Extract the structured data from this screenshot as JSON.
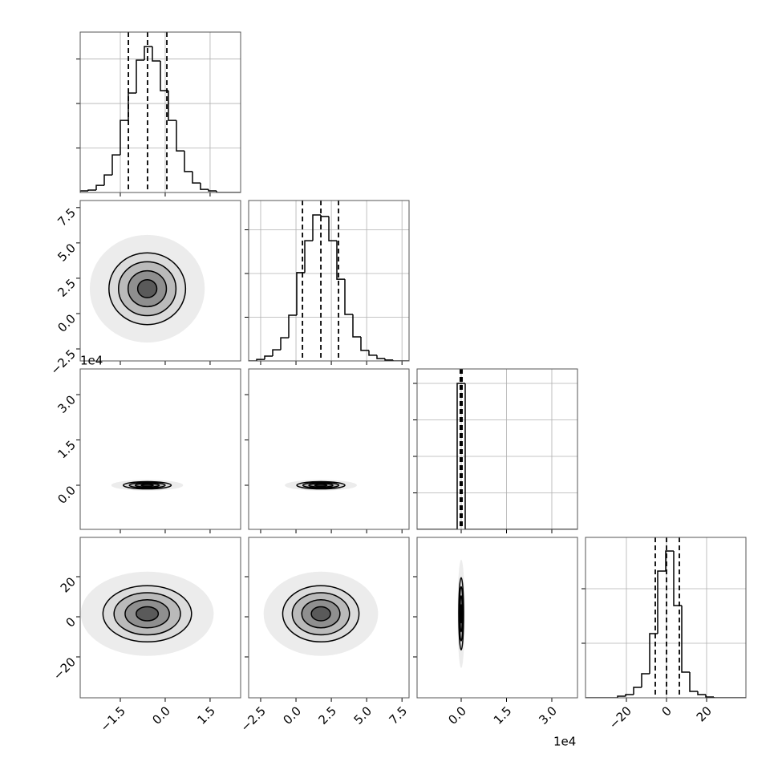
{
  "chart_data": {
    "type": "corner",
    "grid": true,
    "line_color": "#000000",
    "frame_color": "#555555",
    "grid_color": "#b0b0b0",
    "levels": [
      0.5,
      1,
      1.5,
      2
    ],
    "contour_fills": [
      "#5a5a5a",
      "#8f8f8f",
      "#bababa",
      "#dcdcdc"
    ],
    "cloud": {
      "level": 3,
      "color": "#ececec"
    },
    "variables": [
      {
        "xlim": [
          -2.84,
          2.52
        ],
        "ticks": [
          {
            "value": -1.5,
            "label": "−1.5"
          },
          {
            "value": 0,
            "label": "0.0"
          },
          1.5
        ],
        "bins": [
          -2.84,
          -2.572,
          -2.304,
          -2.036,
          -1.768,
          -1.5,
          -1.232,
          -0.964,
          -0.696,
          -0.428,
          -0.16,
          0.108,
          0.376,
          0.644,
          0.912,
          1.18,
          1.448,
          1.716,
          1.984,
          2.252,
          2.52
        ],
        "counts": [
          7,
          11,
          32,
          79,
          169,
          324,
          447,
          595,
          656,
          591,
          458,
          324,
          187,
          94,
          43,
          14,
          7,
          0,
          0,
          0
        ],
        "hist_ylim": [
          0,
          721
        ],
        "hist_yticks": [
          200,
          400,
          600
        ],
        "quantiles": [
          -1.23,
          -0.59,
          0.055
        ]
      },
      {
        "xlim": [
          -3.35,
          8.0
        ],
        "ticks": [
          {
            "value": -2.5,
            "label": "−2.5"
          },
          {
            "value": 0,
            "label": "0.0"
          },
          2.5,
          {
            "value": 5,
            "label": "5.0"
          },
          7.5
        ],
        "bins": [
          -3.35,
          -2.7825,
          -2.215,
          -1.6475,
          -1.08,
          -0.5125,
          0.055,
          0.6225,
          1.19,
          1.7575,
          2.325,
          2.8925,
          3.46,
          4.0275,
          4.595,
          5.1625,
          5.73,
          6.2975,
          6.865,
          7.4325,
          8.0
        ],
        "counts": [
          0,
          7,
          22,
          51,
          106,
          209,
          404,
          550,
          668,
          661,
          550,
          374,
          213,
          110,
          48,
          26,
          11,
          4,
          0,
          0
        ],
        "hist_ylim": [
          0,
          734
        ],
        "hist_yticks": [
          200,
          400,
          600
        ],
        "quantiles": [
          0.46,
          1.76,
          3.01
        ]
      },
      {
        "xlim": [
          -1.46,
          3.85
        ],
        "ticks": [
          {
            "value": 0,
            "label": "0.0"
          },
          1.5,
          {
            "value": 3,
            "label": "3.0"
          }
        ],
        "offset": "1e4",
        "bins": [
          -1.46,
          -1.1945,
          -0.929,
          -0.6635,
          -0.398,
          -0.1325,
          0.133,
          0.3985,
          0.664,
          0.9295,
          1.195,
          1.4605,
          1.726,
          1.9915,
          2.257,
          2.5225,
          2.788,
          3.0535,
          3.319,
          3.5845,
          3.85
        ],
        "counts": [
          0,
          0,
          0,
          0,
          0,
          8000,
          0,
          0,
          0,
          0,
          0,
          0,
          0,
          0,
          0,
          0,
          0,
          0,
          0,
          0
        ],
        "hist_ylim": [
          0,
          8791
        ],
        "hist_yticks": [
          2000,
          4000,
          6000,
          8000
        ],
        "quantiles": [
          -0.03,
          0.0,
          0.03
        ]
      },
      {
        "xlim": [
          -40.4,
          39.6
        ],
        "ticks": [
          {
            "value": -20,
            "label": "−20"
          },
          0,
          20
        ],
        "bins": [
          -40.4,
          -36.4,
          -32.4,
          -28.4,
          -24.4,
          -20.4,
          -16.4,
          -12.4,
          -8.4,
          -4.4,
          -0.4,
          3.6,
          7.6,
          11.6,
          15.6,
          19.6,
          23.6,
          27.6,
          31.6,
          35.6,
          39.6
        ],
        "counts": [
          0,
          0,
          0,
          0,
          29,
          59,
          191,
          441,
          1176,
          2324,
          2691,
          1691,
          471,
          118,
          59,
          15,
          0,
          0,
          0,
          0
        ],
        "hist_ylim": [
          0,
          2941
        ],
        "hist_yticks": [
          1000,
          2000
        ],
        "quantiles": [
          -5.6,
          0.0,
          6.4
        ]
      }
    ],
    "pairs": [
      [
        {
          "mean": [
            -0.6,
            1.76
          ],
          "sigma": [
            0.64,
            1.27
          ]
        }
      ],
      [
        {
          "mean": [
            -0.6,
            0.0
          ],
          "sigma": [
            0.4,
            0.06
          ]
        },
        {
          "mean": [
            1.76,
            0.0
          ],
          "sigma": [
            0.85,
            0.06
          ]
        }
      ],
      [
        {
          "mean": [
            -0.6,
            1.5
          ],
          "sigma": [
            0.74,
            7
          ]
        },
        {
          "mean": [
            1.76,
            1.5
          ],
          "sigma": [
            1.35,
            7
          ]
        },
        {
          "mean": [
            0.0,
            1.5
          ],
          "sigma": [
            0.04,
            9
          ]
        }
      ]
    ]
  }
}
